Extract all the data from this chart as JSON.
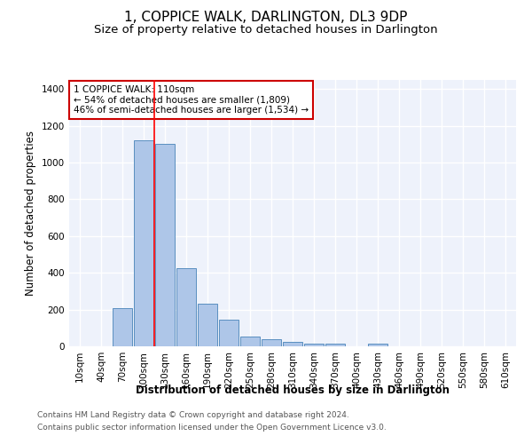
{
  "title": "1, COPPICE WALK, DARLINGTON, DL3 9DP",
  "subtitle": "Size of property relative to detached houses in Darlington",
  "xlabel": "Distribution of detached houses by size in Darlington",
  "ylabel": "Number of detached properties",
  "categories": [
    "10sqm",
    "40sqm",
    "70sqm",
    "100sqm",
    "130sqm",
    "160sqm",
    "190sqm",
    "220sqm",
    "250sqm",
    "280sqm",
    "310sqm",
    "340sqm",
    "370sqm",
    "400sqm",
    "430sqm",
    "460sqm",
    "490sqm",
    "520sqm",
    "550sqm",
    "580sqm",
    "610sqm"
  ],
  "values": [
    0,
    0,
    210,
    1120,
    1100,
    425,
    230,
    145,
    55,
    38,
    25,
    15,
    15,
    0,
    15,
    0,
    0,
    0,
    0,
    0,
    0
  ],
  "bar_color": "#aec6e8",
  "bar_edge_color": "#5a8fc0",
  "red_line_x": 3.5,
  "annotation_text": "1 COPPICE WALK: 110sqm\n← 54% of detached houses are smaller (1,809)\n46% of semi-detached houses are larger (1,534) →",
  "annotation_box_color": "#ffffff",
  "annotation_box_edge_color": "#cc0000",
  "ylim": [
    0,
    1450
  ],
  "yticks": [
    0,
    200,
    400,
    600,
    800,
    1000,
    1200,
    1400
  ],
  "background_color": "#eef2fb",
  "grid_color": "#ffffff",
  "footer_line1": "Contains HM Land Registry data © Crown copyright and database right 2024.",
  "footer_line2": "Contains public sector information licensed under the Open Government Licence v3.0.",
  "title_fontsize": 11,
  "subtitle_fontsize": 9.5,
  "label_fontsize": 8.5,
  "tick_fontsize": 7.5,
  "footer_fontsize": 6.5
}
